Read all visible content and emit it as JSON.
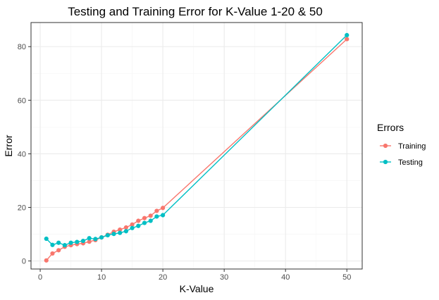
{
  "chart_data": {
    "type": "line",
    "title": "Testing and Training Error for K-Value 1-20 & 50",
    "xlabel": "K-Value",
    "ylabel": "Error",
    "xlim": [
      -1.5,
      52.5
    ],
    "ylim": [
      -3,
      89
    ],
    "x_ticks": [
      0,
      10,
      20,
      30,
      40,
      50
    ],
    "y_ticks": [
      0,
      20,
      40,
      60,
      80
    ],
    "x_tick_labels": [
      "0",
      "10",
      "20",
      "30",
      "40",
      "50"
    ],
    "y_tick_labels": [
      "0",
      "20",
      "40",
      "60",
      "80"
    ],
    "grid": true,
    "legend": {
      "title": "Errors",
      "position": "right"
    },
    "x": [
      1,
      2,
      3,
      4,
      5,
      6,
      7,
      8,
      9,
      10,
      11,
      12,
      13,
      14,
      15,
      16,
      17,
      18,
      19,
      20,
      50
    ],
    "series": [
      {
        "name": "Training",
        "color": "#F8766D",
        "values": [
          0.2,
          2.8,
          4.0,
          5.3,
          5.9,
          6.3,
          6.6,
          7.2,
          7.8,
          8.8,
          9.8,
          10.9,
          11.7,
          12.5,
          13.6,
          15.0,
          16.0,
          16.9,
          18.7,
          19.8,
          82.8
        ]
      },
      {
        "name": "Testing",
        "color": "#00BFC4",
        "values": [
          8.3,
          6.0,
          6.8,
          5.9,
          6.8,
          7.1,
          7.5,
          8.5,
          8.2,
          8.8,
          9.6,
          10.1,
          10.5,
          11.1,
          12.3,
          13.1,
          14.2,
          15.0,
          16.6,
          17.1,
          84.3
        ]
      }
    ]
  }
}
